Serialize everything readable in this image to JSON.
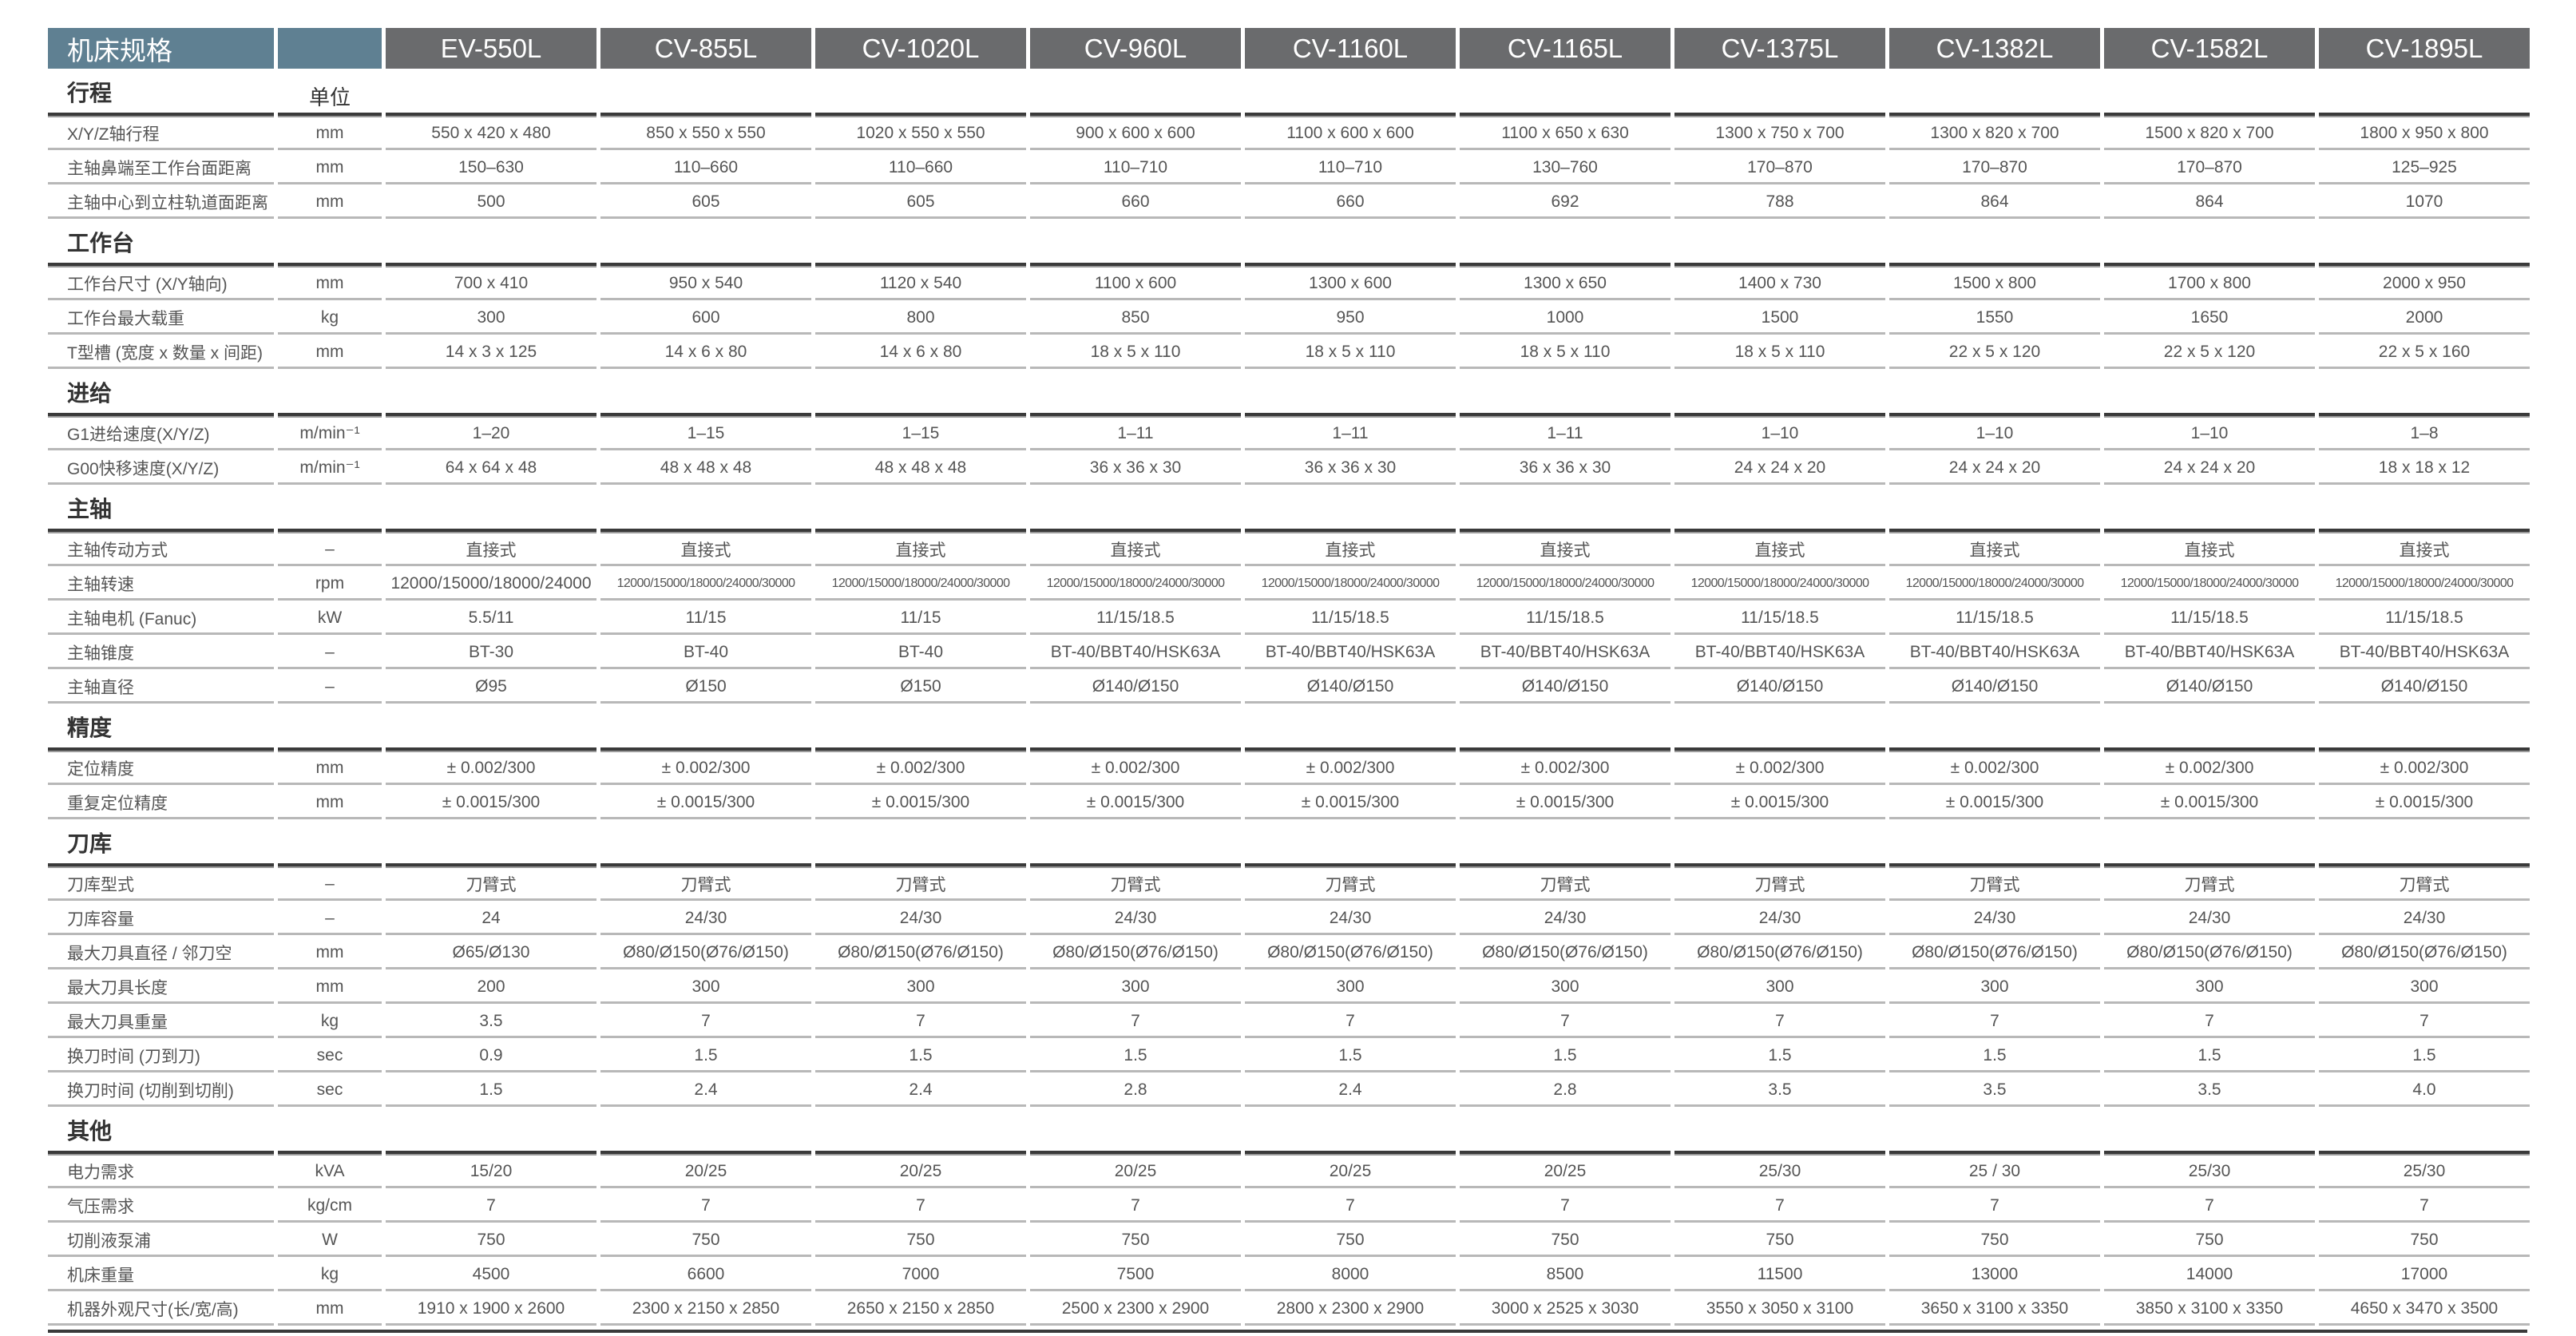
{
  "header": {
    "title": "机床规格",
    "models": [
      "EV-550L",
      "CV-855L",
      "CV-1020L",
      "CV-960L",
      "CV-1160L",
      "CV-1165L",
      "CV-1375L",
      "CV-1382L",
      "CV-1582L",
      "CV-1895L"
    ]
  },
  "unit_heading": "单位",
  "sections": [
    {
      "title": "行程",
      "rows": [
        {
          "label": "X/Y/Z轴行程",
          "unit": "mm",
          "values": [
            "550 x 420 x 480",
            "850 x 550 x 550",
            "1020 x 550 x 550",
            "900 x 600 x 600",
            "1100 x 600 x 600",
            "1100 x 650 x 630",
            "1300 x 750 x 700",
            "1300 x 820 x 700",
            "1500 x 820 x 700",
            "1800 x 950 x 800"
          ]
        },
        {
          "label": "主轴鼻端至工作台面距离",
          "unit": "mm",
          "values": [
            "150–630",
            "110–660",
            "110–660",
            "110–710",
            "110–710",
            "130–760",
            "170–870",
            "170–870",
            "170–870",
            "125–925"
          ]
        },
        {
          "label": "主轴中心到立柱轨道面距离",
          "unit": "mm",
          "values": [
            "500",
            "605",
            "605",
            "660",
            "660",
            "692",
            "788",
            "864",
            "864",
            "1070"
          ]
        }
      ]
    },
    {
      "title": "工作台",
      "rows": [
        {
          "label": "工作台尺寸 (X/Y轴向)",
          "unit": "mm",
          "values": [
            "700 x 410",
            "950 x 540",
            "1120 x 540",
            "1100 x 600",
            "1300 x 600",
            "1300 x 650",
            "1400 x 730",
            "1500 x 800",
            "1700 x 800",
            "2000 x 950"
          ]
        },
        {
          "label": "工作台最大载重",
          "unit": "kg",
          "values": [
            "300",
            "600",
            "800",
            "850",
            "950",
            "1000",
            "1500",
            "1550",
            "1650",
            "2000"
          ]
        },
        {
          "label": "T型槽 (宽度 x 数量 x 间距)",
          "unit": "mm",
          "values": [
            "14 x 3 x 125",
            "14 x 6 x 80",
            "14 x 6 x 80",
            "18 x 5 x 110",
            "18 x 5 x 110",
            "18 x 5 x 110",
            "18 x 5 x 110",
            "22 x 5 x 120",
            "22 x 5 x 120",
            "22 x 5 x 160"
          ]
        }
      ]
    },
    {
      "title": "进给",
      "rows": [
        {
          "label": "G1进给速度(X/Y/Z)",
          "unit": "m/min⁻¹",
          "values": [
            "1–20",
            "1–15",
            "1–15",
            "1–11",
            "1–11",
            "1–11",
            "1–10",
            "1–10",
            "1–10",
            "1–8"
          ]
        },
        {
          "label": "G00快移速度(X/Y/Z)",
          "unit": "m/min⁻¹",
          "values": [
            "64 x 64 x 48",
            "48 x 48 x 48",
            "48 x 48 x 48",
            "36 x 36 x 30",
            "36 x 36 x 30",
            "36 x 36 x 30",
            "24 x 24 x 20",
            "24 x 24 x 20",
            "24 x 24 x 20",
            "18 x 18 x 12"
          ]
        }
      ]
    },
    {
      "title": "主轴",
      "rows": [
        {
          "label": "主轴传动方式",
          "unit": "–",
          "values": [
            "直接式",
            "直接式",
            "直接式",
            "直接式",
            "直接式",
            "直接式",
            "直接式",
            "直接式",
            "直接式",
            "直接式"
          ]
        },
        {
          "label": "主轴转速",
          "unit": "rpm",
          "values": [
            "12000/15000/18000/24000",
            "12000/15000/18000/24000/30000",
            "12000/15000/18000/24000/30000",
            "12000/15000/18000/24000/30000",
            "12000/15000/18000/24000/30000",
            "12000/15000/18000/24000/30000",
            "12000/15000/18000/24000/30000",
            "12000/15000/18000/24000/30000",
            "12000/15000/18000/24000/30000",
            "12000/15000/18000/24000/30000"
          ]
        },
        {
          "label": "主轴电机 (Fanuc)",
          "unit": "kW",
          "values": [
            "5.5/11",
            "11/15",
            "11/15",
            "11/15/18.5",
            "11/15/18.5",
            "11/15/18.5",
            "11/15/18.5",
            "11/15/18.5",
            "11/15/18.5",
            "11/15/18.5"
          ]
        },
        {
          "label": "主轴锥度",
          "unit": "–",
          "values": [
            "BT-30",
            "BT-40",
            "BT-40",
            "BT-40/BBT40/HSK63A",
            "BT-40/BBT40/HSK63A",
            "BT-40/BBT40/HSK63A",
            "BT-40/BBT40/HSK63A",
            "BT-40/BBT40/HSK63A",
            "BT-40/BBT40/HSK63A",
            "BT-40/BBT40/HSK63A"
          ]
        },
        {
          "label": "主轴直径",
          "unit": "–",
          "values": [
            "Ø95",
            "Ø150",
            "Ø150",
            "Ø140/Ø150",
            "Ø140/Ø150",
            "Ø140/Ø150",
            "Ø140/Ø150",
            "Ø140/Ø150",
            "Ø140/Ø150",
            "Ø140/Ø150"
          ]
        }
      ]
    },
    {
      "title": "精度",
      "rows": [
        {
          "label": "定位精度",
          "unit": "mm",
          "values": [
            "± 0.002/300",
            "± 0.002/300",
            "± 0.002/300",
            "± 0.002/300",
            "± 0.002/300",
            "± 0.002/300",
            "± 0.002/300",
            "± 0.002/300",
            "± 0.002/300",
            "± 0.002/300"
          ]
        },
        {
          "label": "重复定位精度",
          "unit": "mm",
          "values": [
            "± 0.0015/300",
            "± 0.0015/300",
            "± 0.0015/300",
            "± 0.0015/300",
            "± 0.0015/300",
            "± 0.0015/300",
            "± 0.0015/300",
            "± 0.0015/300",
            "± 0.0015/300",
            "± 0.0015/300"
          ]
        }
      ]
    },
    {
      "title": "刀库",
      "rows": [
        {
          "label": "刀库型式",
          "unit": "–",
          "values": [
            "刀臂式",
            "刀臂式",
            "刀臂式",
            "刀臂式",
            "刀臂式",
            "刀臂式",
            "刀臂式",
            "刀臂式",
            "刀臂式",
            "刀臂式"
          ]
        },
        {
          "label": "刀库容量",
          "unit": "–",
          "values": [
            "24",
            "24/30",
            "24/30",
            "24/30",
            "24/30",
            "24/30",
            "24/30",
            "24/30",
            "24/30",
            "24/30"
          ]
        },
        {
          "label": "最大刀具直径 / 邻刀空",
          "unit": "mm",
          "values": [
            "Ø65/Ø130",
            "Ø80/Ø150(Ø76/Ø150)",
            "Ø80/Ø150(Ø76/Ø150)",
            "Ø80/Ø150(Ø76/Ø150)",
            "Ø80/Ø150(Ø76/Ø150)",
            "Ø80/Ø150(Ø76/Ø150)",
            "Ø80/Ø150(Ø76/Ø150)",
            "Ø80/Ø150(Ø76/Ø150)",
            "Ø80/Ø150(Ø76/Ø150)",
            "Ø80/Ø150(Ø76/Ø150)"
          ]
        },
        {
          "label": "最大刀具长度",
          "unit": "mm",
          "values": [
            "200",
            "300",
            "300",
            "300",
            "300",
            "300",
            "300",
            "300",
            "300",
            "300"
          ]
        },
        {
          "label": "最大刀具重量",
          "unit": "kg",
          "values": [
            "3.5",
            "7",
            "7",
            "7",
            "7",
            "7",
            "7",
            "7",
            "7",
            "7"
          ]
        },
        {
          "label": "换刀时间 (刀到刀)",
          "unit": "sec",
          "values": [
            "0.9",
            "1.5",
            "1.5",
            "1.5",
            "1.5",
            "1.5",
            "1.5",
            "1.5",
            "1.5",
            "1.5"
          ]
        },
        {
          "label": "换刀时间 (切削到切削)",
          "unit": "sec",
          "values": [
            "1.5",
            "2.4",
            "2.4",
            "2.8",
            "2.4",
            "2.8",
            "3.5",
            "3.5",
            "3.5",
            "4.0"
          ]
        }
      ]
    },
    {
      "title": "其他",
      "rows": [
        {
          "label": "电力需求",
          "unit": "kVA",
          "values": [
            "15/20",
            "20/25",
            "20/25",
            "20/25",
            "20/25",
            "20/25",
            "25/30",
            "25 / 30",
            "25/30",
            "25/30"
          ]
        },
        {
          "label": "气压需求",
          "unit": "kg/cm",
          "values": [
            "7",
            "7",
            "7",
            "7",
            "7",
            "7",
            "7",
            "7",
            "7",
            "7"
          ]
        },
        {
          "label": "切削液泵浦",
          "unit": "W",
          "values": [
            "750",
            "750",
            "750",
            "750",
            "750",
            "750",
            "750",
            "750",
            "750",
            "750"
          ]
        },
        {
          "label": "机床重量",
          "unit": "kg",
          "values": [
            "4500",
            "6600",
            "7000",
            "7500",
            "8000",
            "8500",
            "11500",
            "13000",
            "14000",
            "17000"
          ]
        },
        {
          "label": "机器外观尺寸(长/宽/高)",
          "unit": "mm",
          "values": [
            "1910 x 1900 x 2600",
            "2300 x 2150 x 2850",
            "2650 x 2150 x 2850",
            "2500 x 2300 x 2900",
            "2800 x 2300 x 2900",
            "3000 x 2525 x 3030",
            "3550 x 3050 x 3100",
            "3650 x 3100 x 3350",
            "3850 x 3100 x 3350",
            "4650 x 3470 x 3500"
          ]
        }
      ]
    }
  ],
  "colors": {
    "title_header": "#5f8092",
    "model_header": "#6a6b6d",
    "text": "#555555",
    "rule": "#3a3a3a"
  }
}
